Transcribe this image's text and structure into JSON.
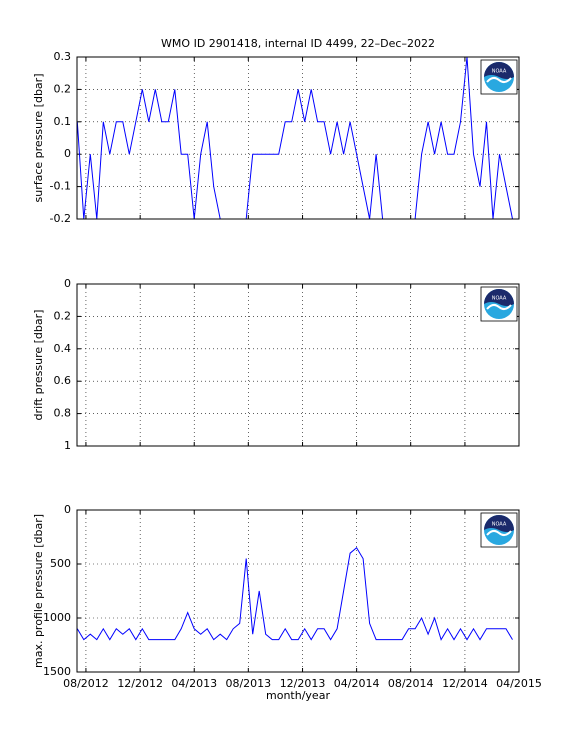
{
  "title": "WMO ID 2901418, internal ID 4499, 22–Dec–2022",
  "logo": "NOAA",
  "chart_data": [
    {
      "type": "line",
      "ylabel": "surface pressure [dbar]",
      "xlim": [
        2012.528,
        2015.25
      ],
      "ylim": [
        -0.2,
        0.3
      ],
      "yticks": [
        -0.2,
        -0.1,
        0,
        0.1,
        0.2,
        0.3
      ],
      "grid": true,
      "x": [
        2012.53,
        2012.57,
        2012.61,
        2012.65,
        2012.69,
        2012.73,
        2012.77,
        2012.81,
        2012.85,
        2012.89,
        2012.93,
        2012.97,
        2013.01,
        2013.05,
        2013.09,
        2013.13,
        2013.17,
        2013.21,
        2013.25,
        2013.29,
        2013.33,
        2013.37,
        2013.41,
        2013.45,
        2013.49,
        2013.53,
        2013.57,
        2013.61,
        2013.65,
        2013.69,
        2013.73,
        2013.77,
        2013.81,
        2013.85,
        2013.89,
        2013.93,
        2013.97,
        2014.01,
        2014.05,
        2014.09,
        2014.13,
        2014.17,
        2014.21,
        2014.25,
        2014.29,
        2014.33,
        2014.37,
        2014.41,
        2014.45,
        2014.49,
        2014.53,
        2014.57,
        2014.61,
        2014.65,
        2014.69,
        2014.73,
        2014.77,
        2014.81,
        2014.85,
        2014.89,
        2014.93,
        2014.97,
        2015.01,
        2015.05,
        2015.09,
        2015.13,
        2015.17,
        2015.21
      ],
      "series": [
        {
          "color": "#0000ff",
          "values": [
            0.1,
            -0.2,
            0,
            -0.2,
            0.1,
            0,
            0.1,
            0.1,
            0,
            0.1,
            0.2,
            0.1,
            0.2,
            0.1,
            0.1,
            0.2,
            0,
            0,
            -0.2,
            0,
            0.1,
            -0.1,
            -0.2,
            -0.2,
            -0.2,
            -0.2,
            -0.2,
            0,
            0,
            0,
            0,
            0,
            0.1,
            0.1,
            0.2,
            0.1,
            0.2,
            0.1,
            0.1,
            0,
            0.1,
            0,
            0.1,
            0,
            -0.1,
            -0.2,
            0,
            -0.2,
            -0.2,
            -0.2,
            -0.2,
            -0.2,
            -0.2,
            0,
            0.1,
            0,
            0.1,
            0,
            0,
            0.1,
            0.3,
            0,
            -0.1,
            0.1,
            -0.2,
            0,
            -0.1,
            -0.2
          ]
        }
      ]
    },
    {
      "type": "line",
      "ylabel": "drift pressure [dbar]",
      "xlim": [
        2012.528,
        2015.25
      ],
      "ylim": [
        1,
        0
      ],
      "yticks": [
        0,
        0.2,
        0.4,
        0.6,
        0.8,
        1
      ],
      "grid": true,
      "x": [],
      "series": [
        {
          "color": "#0000ff",
          "values": []
        }
      ]
    },
    {
      "type": "line",
      "ylabel": "max. profile pressure [dbar]",
      "xlabel": "month/year",
      "xlim": [
        2012.528,
        2015.25
      ],
      "ylim": [
        1500,
        0
      ],
      "yticks": [
        0,
        500,
        1000,
        1500
      ],
      "grid": true,
      "xticks": [
        {
          "value": 2012.583,
          "label": "08/2012"
        },
        {
          "value": 2012.917,
          "label": "12/2012"
        },
        {
          "value": 2013.25,
          "label": "04/2013"
        },
        {
          "value": 2013.583,
          "label": "08/2013"
        },
        {
          "value": 2013.917,
          "label": "12/2013"
        },
        {
          "value": 2014.25,
          "label": "04/2014"
        },
        {
          "value": 2014.583,
          "label": "08/2014"
        },
        {
          "value": 2014.917,
          "label": "12/2014"
        },
        {
          "value": 2015.25,
          "label": "04/2015"
        }
      ],
      "x": [
        2012.53,
        2012.57,
        2012.61,
        2012.65,
        2012.69,
        2012.73,
        2012.77,
        2012.81,
        2012.85,
        2012.89,
        2012.93,
        2012.97,
        2013.01,
        2013.05,
        2013.09,
        2013.13,
        2013.17,
        2013.21,
        2013.25,
        2013.29,
        2013.33,
        2013.37,
        2013.41,
        2013.45,
        2013.49,
        2013.53,
        2013.57,
        2013.61,
        2013.65,
        2013.69,
        2013.73,
        2013.77,
        2013.81,
        2013.85,
        2013.89,
        2013.93,
        2013.97,
        2014.01,
        2014.05,
        2014.09,
        2014.13,
        2014.17,
        2014.21,
        2014.25,
        2014.29,
        2014.33,
        2014.37,
        2014.41,
        2014.45,
        2014.49,
        2014.53,
        2014.57,
        2014.61,
        2014.65,
        2014.69,
        2014.73,
        2014.77,
        2014.81,
        2014.85,
        2014.89,
        2014.93,
        2014.97,
        2015.01,
        2015.05,
        2015.09,
        2015.13,
        2015.17,
        2015.21
      ],
      "series": [
        {
          "color": "#0000ff",
          "values": [
            1100,
            1200,
            1150,
            1200,
            1100,
            1200,
            1100,
            1150,
            1100,
            1200,
            1100,
            1200,
            1200,
            1200,
            1200,
            1200,
            1100,
            950,
            1100,
            1150,
            1100,
            1200,
            1150,
            1200,
            1100,
            1050,
            450,
            1150,
            750,
            1150,
            1200,
            1200,
            1100,
            1200,
            1200,
            1100,
            1200,
            1100,
            1100,
            1200,
            1100,
            750,
            400,
            350,
            450,
            1050,
            1200,
            1200,
            1200,
            1200,
            1200,
            1100,
            1100,
            1000,
            1150,
            1000,
            1200,
            1100,
            1200,
            1100,
            1200,
            1100,
            1200,
            1100,
            1100,
            1100,
            1100,
            1200
          ]
        }
      ]
    }
  ]
}
